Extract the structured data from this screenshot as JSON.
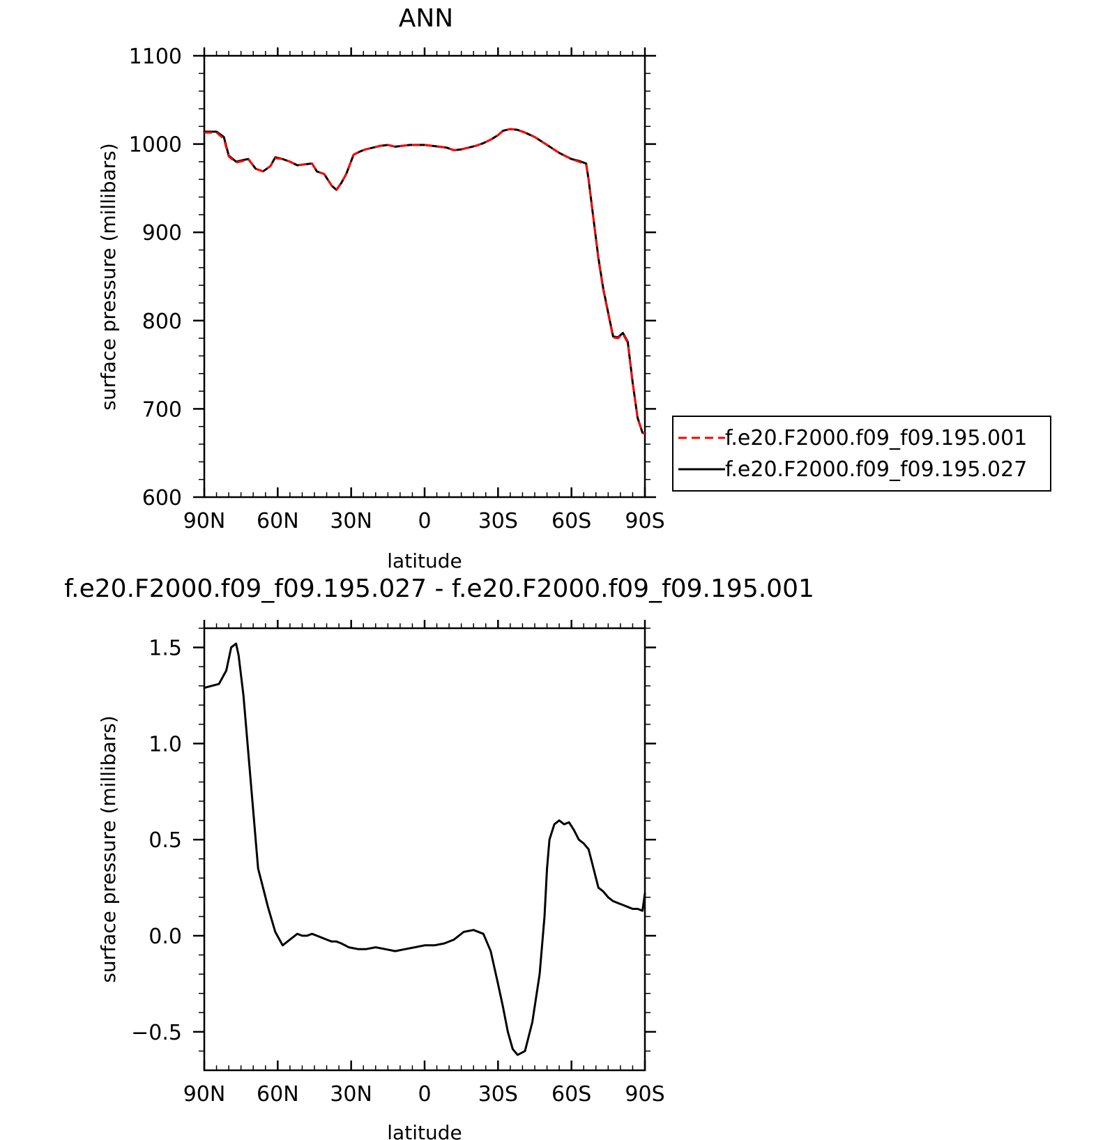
{
  "chart_data": [
    {
      "type": "line",
      "title": "ANN",
      "xlabel": "latitude",
      "ylabel": "surface pressure (millibars)",
      "xlim": [
        90,
        -90
      ],
      "ylim": [
        600,
        1100
      ],
      "x_tick_values": [
        90,
        60,
        30,
        0,
        -30,
        -60,
        -90
      ],
      "x_tick_labels": [
        "90N",
        "60N",
        "30N",
        "0",
        "30S",
        "60S",
        "90S"
      ],
      "y_tick_values": [
        600,
        700,
        800,
        900,
        1000,
        1100
      ],
      "y_tick_labels": [
        "600",
        "700",
        "800",
        "900",
        "1000",
        "1100"
      ],
      "legend_position": "right",
      "legend": [
        "f.e20.F2000.f09_f09.195.001",
        "f.e20.F2000.f09_f09.195.027"
      ],
      "x": [
        90,
        85,
        82,
        80,
        77,
        74,
        72,
        69,
        66,
        63,
        61,
        58,
        55,
        52,
        49,
        46,
        44,
        41,
        38,
        36,
        34,
        32,
        29,
        26,
        24,
        21,
        18,
        15,
        12,
        9,
        6,
        3,
        0,
        -3,
        -6,
        -9,
        -12,
        -15,
        -18,
        -21,
        -24,
        -27,
        -30,
        -32,
        -35,
        -38,
        -41,
        -45,
        -50,
        -55,
        -60,
        -63,
        -66,
        -67,
        -69,
        -71,
        -73,
        -75,
        -77,
        -79,
        -81,
        -83,
        -85,
        -87,
        -89,
        -90
      ],
      "series": [
        {
          "name": "f.e20.F2000.f09_f09.195.001",
          "color": "#ff0000",
          "dash": "dashed",
          "values": [
            1013,
            1013,
            1006,
            986,
            979,
            981,
            983,
            972,
            969,
            975,
            984,
            983,
            980,
            976,
            977,
            978,
            969,
            966,
            953,
            948,
            956,
            966,
            988,
            992,
            994,
            996,
            998,
            999,
            997,
            998,
            999,
            999,
            999,
            998,
            997,
            996,
            993,
            994,
            996,
            998,
            1001,
            1005,
            1010,
            1015,
            1017,
            1016,
            1013,
            1008,
            999,
            990,
            983,
            980,
            977,
            960,
            915,
            870,
            835,
            808,
            781,
            780,
            785,
            775,
            730,
            690,
            673,
            672
          ]
        },
        {
          "name": "f.e20.F2000.f09_f09.195.027",
          "color": "#000000",
          "dash": "solid",
          "values": [
            1014,
            1014,
            1008,
            987,
            980,
            982,
            983,
            972,
            969,
            975,
            985,
            983,
            980,
            976,
            977,
            978,
            969,
            966,
            953,
            948,
            956,
            966,
            988,
            992,
            994,
            996,
            998,
            999,
            997,
            998,
            999,
            999,
            999,
            998,
            997,
            996,
            993,
            994,
            996,
            998,
            1001,
            1005,
            1010,
            1015,
            1017,
            1016,
            1013,
            1008,
            999,
            990,
            983,
            981,
            978,
            960,
            915,
            871,
            836,
            809,
            782,
            781,
            786,
            776,
            730,
            690,
            673,
            672
          ]
        }
      ]
    },
    {
      "type": "line",
      "title": "f.e20.F2000.f09_f09.195.027 - f.e20.F2000.f09_f09.195.001",
      "xlabel": "latitude",
      "ylabel": "surface pressure (millibars)",
      "xlim": [
        90,
        -90
      ],
      "ylim": [
        -0.7,
        1.6
      ],
      "x_tick_values": [
        90,
        60,
        30,
        0,
        -30,
        -60,
        -90
      ],
      "x_tick_labels": [
        "90N",
        "60N",
        "30N",
        "0",
        "30S",
        "60S",
        "90S"
      ],
      "y_tick_values": [
        -0.5,
        0.0,
        0.5,
        1.0,
        1.5
      ],
      "y_tick_labels": [
        "−0.5",
        "0.0",
        "0.5",
        "1.0",
        "1.5"
      ],
      "x": [
        90,
        87,
        84,
        81,
        79,
        77,
        76,
        74,
        72,
        70,
        68,
        66,
        64,
        61,
        58,
        55,
        52,
        50,
        48,
        46,
        44,
        42,
        40,
        38,
        36,
        34,
        31,
        27,
        24,
        20,
        16,
        12,
        8,
        4,
        0,
        -4,
        -8,
        -12,
        -16,
        -20,
        -24,
        -27,
        -30,
        -32,
        -34,
        -36,
        -38,
        -41,
        -44,
        -47,
        -49,
        -50,
        -51,
        -53,
        -55,
        -57,
        -59,
        -61,
        -63,
        -65,
        -67,
        -69,
        -71,
        -73,
        -75,
        -77,
        -79,
        -81,
        -83,
        -85,
        -87,
        -89,
        -90
      ],
      "series": [
        {
          "name": "",
          "color": "#000000",
          "dash": "solid",
          "values": [
            1.29,
            1.3,
            1.31,
            1.38,
            1.5,
            1.52,
            1.46,
            1.25,
            0.95,
            0.65,
            0.35,
            0.25,
            0.15,
            0.02,
            -0.05,
            -0.02,
            0.01,
            0.0,
            0.0,
            0.01,
            0.0,
            -0.01,
            -0.02,
            -0.03,
            -0.03,
            -0.04,
            -0.06,
            -0.07,
            -0.07,
            -0.06,
            -0.07,
            -0.08,
            -0.07,
            -0.06,
            -0.05,
            -0.05,
            -0.04,
            -0.02,
            0.02,
            0.03,
            0.01,
            -0.08,
            -0.25,
            -0.37,
            -0.5,
            -0.59,
            -0.62,
            -0.6,
            -0.45,
            -0.2,
            0.1,
            0.35,
            0.5,
            0.58,
            0.6,
            0.58,
            0.59,
            0.55,
            0.5,
            0.48,
            0.45,
            0.35,
            0.25,
            0.23,
            0.2,
            0.18,
            0.17,
            0.16,
            0.15,
            0.14,
            0.14,
            0.13,
            0.22
          ]
        }
      ]
    }
  ]
}
